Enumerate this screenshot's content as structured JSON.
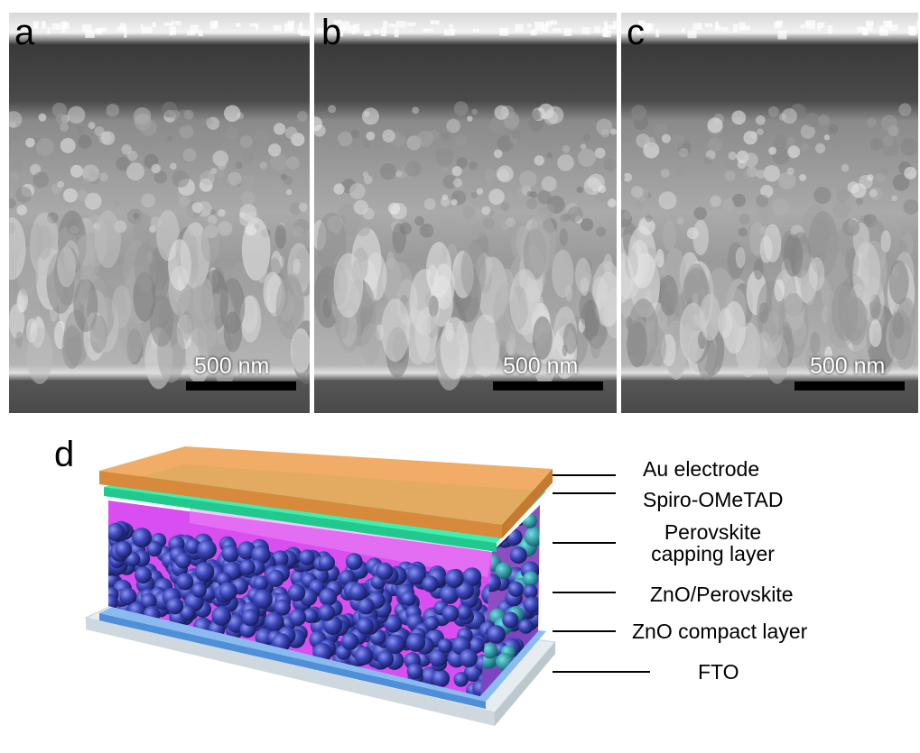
{
  "panels": [
    {
      "label": "a",
      "scale_bar": "500 nm"
    },
    {
      "label": "b",
      "scale_bar": "500 nm"
    },
    {
      "label": "c",
      "scale_bar": "500 nm"
    }
  ],
  "diagram": {
    "label": "d",
    "layers": [
      "Au electrode",
      "Spiro-OMeTAD",
      "Perovskite capping layer",
      "ZnO/Perovskite",
      "ZnO compact layer",
      "FTO"
    ]
  }
}
